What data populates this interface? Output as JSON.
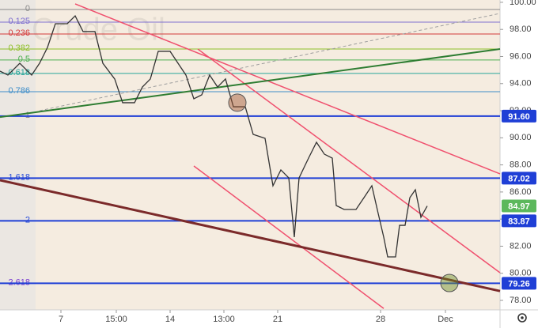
{
  "chart_data": {
    "type": "line",
    "watermark": "Crude Oil",
    "x": [
      0,
      2.5,
      6.25,
      10,
      12.5,
      15,
      17.5,
      21.25,
      23.75,
      26.25,
      30,
      32.5,
      36.25,
      38.75,
      42.5,
      45,
      47.5,
      50,
      53.75,
      56.25,
      58.75,
      61.25,
      63.75,
      66.25,
      68.75,
      71.25,
      73.75,
      77.5,
      80,
      83.75,
      86.25,
      88.75,
      91.25,
      93,
      94.5,
      97.5,
      100,
      102.5,
      105,
      106.25,
      108.75,
      112.5,
      115,
      117.5,
      119.5,
      121.25,
      122.5,
      125,
      126.25,
      128,
      129.5,
      131.25,
      133,
      135
    ],
    "series": [
      {
        "color": "#333333",
        "values": [
          94.92,
          94.63,
          95.5,
          94.63,
          95.5,
          96.67,
          98.42,
          98.42,
          99.0,
          97.84,
          97.84,
          95.5,
          94.34,
          92.59,
          92.59,
          93.75,
          94.34,
          96.38,
          96.38,
          95.5,
          94.63,
          92.88,
          93.17,
          94.63,
          93.75,
          94.34,
          92.29,
          92.29,
          90.25,
          89.96,
          86.46,
          87.63,
          87.04,
          82.67,
          87.04,
          88.5,
          89.67,
          88.79,
          88.5,
          85.0,
          84.71,
          84.71,
          85.58,
          86.46,
          84.42,
          82.67,
          81.21,
          81.21,
          83.54,
          83.54,
          85.58,
          86.17,
          84.13,
          84.97
        ]
      }
    ],
    "xlim": [
      0,
      158
    ],
    "xticks": [
      {
        "value": 19.25,
        "label": "7"
      },
      {
        "value": 36.75,
        "label": "15:00"
      },
      {
        "value": 53.75,
        "label": "14"
      },
      {
        "value": 70.75,
        "label": "13:00"
      },
      {
        "value": 87.75,
        "label": "21"
      },
      {
        "value": 120.25,
        "label": "28"
      },
      {
        "value": 140.75,
        "label": "Dec"
      }
    ],
    "ylim": [
      77.3,
      100.17
    ],
    "yticks": [
      {
        "value": 78,
        "label": "78.00"
      },
      {
        "value": 80,
        "label": "80.00"
      },
      {
        "value": 82,
        "label": "82.00"
      },
      {
        "value": 84,
        "label": "84.00"
      },
      {
        "value": 86,
        "label": "86.00"
      },
      {
        "value": 88,
        "label": "88.00"
      },
      {
        "value": 90,
        "label": "90.00"
      },
      {
        "value": 92,
        "label": "92.00"
      },
      {
        "value": 94,
        "label": "94.00"
      },
      {
        "value": 96,
        "label": "96.00"
      },
      {
        "value": 98,
        "label": "98.00"
      },
      {
        "value": 100,
        "label": "100.00"
      }
    ],
    "fib": [
      {
        "level": 0,
        "price": 99.47,
        "color": "#8a8a8a"
      },
      {
        "level": 0.125,
        "price": 98.54,
        "color": "#7e6fd0"
      },
      {
        "level": 0.236,
        "price": 97.66,
        "color": "#d43a3a"
      },
      {
        "level": 0.382,
        "price": 96.55,
        "color": "#8fbf2a"
      },
      {
        "level": 0.5,
        "price": 95.74,
        "color": "#4caf50"
      },
      {
        "level": 0.618,
        "price": 94.75,
        "color": "#26a69a"
      },
      {
        "level": 0.786,
        "price": 93.4,
        "color": "#3f8ec9"
      },
      {
        "level": 1,
        "price": 91.6,
        "color": "#8a8a8a"
      },
      {
        "level": 1.618,
        "price": 87.02,
        "color": "#2b4fd8"
      },
      {
        "level": 2,
        "price": 83.87,
        "color": "#2b4fd8"
      },
      {
        "level": 2.618,
        "price": 79.26,
        "color": "#7a3fd0"
      }
    ],
    "levels": [
      {
        "value": 91.6,
        "label": "91.60",
        "color": "#1f3fd6"
      },
      {
        "value": 87.02,
        "label": "87.02",
        "color": "#1f3fd6"
      },
      {
        "value": 84.97,
        "label": "84.97",
        "color": "#5cb85c"
      },
      {
        "value": 83.87,
        "label": "83.87",
        "color": "#1f3fd6"
      },
      {
        "value": 79.26,
        "label": "79.26",
        "color": "#1f3fd6"
      }
    ],
    "trendlines": [
      {
        "x": [
          23.75,
          158
        ],
        "y": [
          99.88,
          87.34
        ],
        "color": "#f0506e",
        "width": 1.5
      },
      {
        "x": [
          62.5,
          158
        ],
        "y": [
          96.55,
          80.04
        ],
        "color": "#f0506e",
        "width": 1.5
      },
      {
        "x": [
          61.25,
          121.25
        ],
        "y": [
          87.92,
          77.4
        ],
        "color": "#f0506e",
        "width": 1.5
      },
      {
        "x": [
          0,
          158
        ],
        "y": [
          91.53,
          96.55
        ],
        "color": "#2e7d32",
        "width": 2
      },
      {
        "x": [
          12.5,
          158
        ],
        "y": [
          92.0,
          99.18
        ],
        "color": "#9e9e9e",
        "width": 1,
        "dash": true
      },
      {
        "x": [
          0,
          158
        ],
        "y": [
          86.87,
          78.69
        ],
        "color": "#7b2a2a",
        "width": 3
      }
    ],
    "markers": [
      {
        "x": 75,
        "y": 92.59,
        "color": "#a0522d"
      },
      {
        "x": 142,
        "y": 79.28,
        "color": "#6b8e23"
      }
    ]
  }
}
